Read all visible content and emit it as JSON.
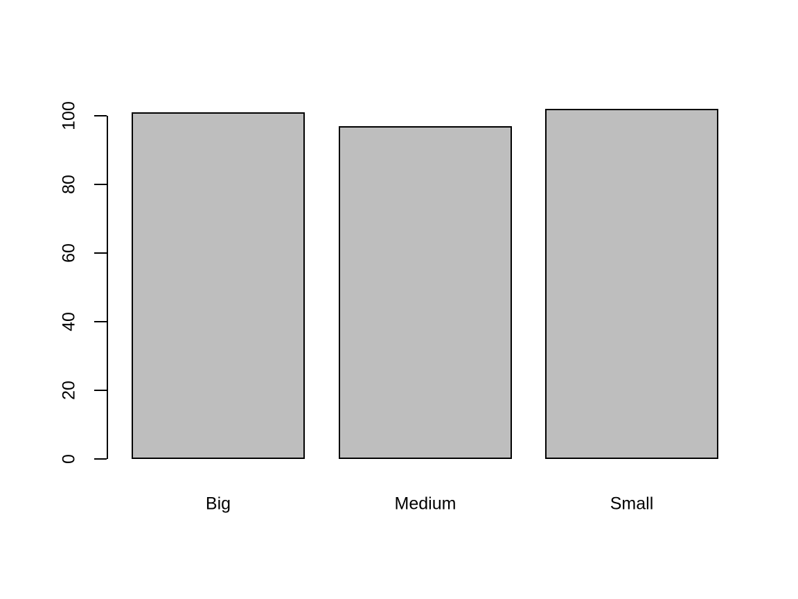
{
  "chart_data": {
    "type": "bar",
    "categories": [
      "Big",
      "Medium",
      "Small"
    ],
    "values": [
      101,
      97,
      102
    ],
    "title": "",
    "xlabel": "",
    "ylabel": "",
    "ylim": [
      0,
      100
    ],
    "yticks": [
      0,
      20,
      40,
      60,
      80,
      100
    ],
    "grid": false,
    "legend_position": "none",
    "bar_fill_color": "#BEBEBE",
    "bar_border_color": "#000000",
    "axis_color": "#000000",
    "background_color": "#FFFFFF"
  }
}
